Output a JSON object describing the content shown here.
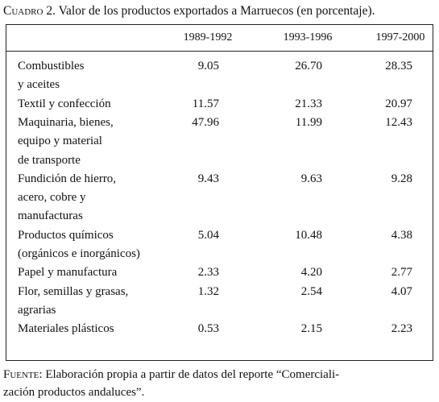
{
  "caption": {
    "label": "Cuadro 2.",
    "text": "Valor de los productos exportados a Marruecos (en porcentaje)."
  },
  "table": {
    "columns": [
      "1989-1992",
      "1993-1996",
      "1997-2000"
    ],
    "rows": [
      {
        "label": [
          "Combustibles",
          "y aceites"
        ],
        "values": [
          "9.05",
          "26.70",
          "28.35"
        ]
      },
      {
        "label": [
          "Textil y confección"
        ],
        "values": [
          "11.57",
          "21.33",
          "20.97"
        ]
      },
      {
        "label": [
          "Maquinaria, bienes,",
          "equipo y material",
          "de transporte"
        ],
        "values": [
          "47.96",
          "11.99",
          "12.43"
        ]
      },
      {
        "label": [
          "Fundición de hierro,",
          "acero, cobre y",
          "manufacturas"
        ],
        "values": [
          "9.43",
          "9.63",
          "9.28"
        ]
      },
      {
        "label": [
          "Productos químicos",
          "(orgánicos e inorgánicos)"
        ],
        "values": [
          "5.04",
          "10.48",
          "4.38"
        ]
      },
      {
        "label": [
          "Papel y manufactura"
        ],
        "values": [
          "2.33",
          "4.20",
          "2.77"
        ]
      },
      {
        "label": [
          "Flor, semillas y grasas,",
          "agrarias"
        ],
        "values": [
          "1.32",
          "2.54",
          "4.07"
        ]
      },
      {
        "label": [
          "Materiales plásticos"
        ],
        "values": [
          "0.53",
          "2.15",
          "2.23"
        ]
      }
    ]
  },
  "footnote": {
    "label": "Fuente:",
    "lines": [
      "Elaboración propia a partir de datos del reporte “Comerciali-",
      "zación productos andaluces”."
    ]
  }
}
